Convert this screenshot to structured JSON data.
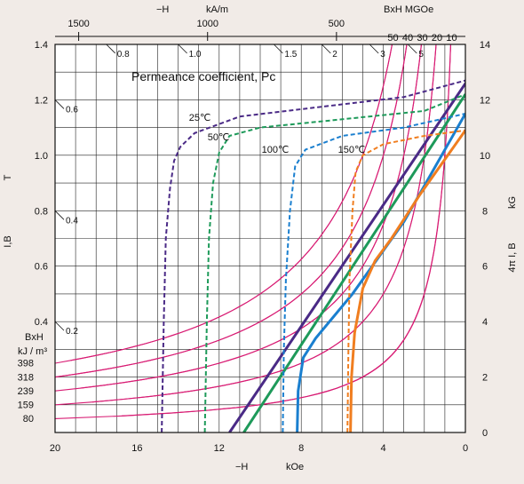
{
  "chart_data": {
    "type": "line",
    "title": "",
    "annotation": "Permeance coefficient, Pc",
    "xlabel_bottom": "−H",
    "xunit_bottom": "kOe",
    "xlabel_top": "−H",
    "xunit_top": "kA/m",
    "top_right_label": "BxH  MGOe",
    "ylabel_left": "I,B",
    "yunit_left": "T",
    "ylabel_right": "4π I, B",
    "yunit_right": "kG",
    "bxh_kj_label_line1": "BxH",
    "bxh_kj_label_line2": "kJ / m³",
    "x_bottom_ticks": [
      "20",
      "16",
      "12",
      "8",
      "4",
      "0"
    ],
    "x_top_ticks": [
      "1500",
      "1000",
      "500"
    ],
    "y_left_ticks": [
      "1.4",
      "1.2",
      "1.0",
      "0.8",
      "0.6",
      "0.4"
    ],
    "y_right_ticks": [
      "14",
      "12",
      "10",
      "8",
      "6",
      "4",
      "2",
      "0"
    ],
    "bxh_kj_values": [
      "398",
      "318",
      "239",
      "159",
      "80"
    ],
    "bxh_mgoe_values": [
      "50",
      "40",
      "30",
      "20",
      "10"
    ],
    "pc_labels": [
      {
        "label": "0.8",
        "pc": 0.8
      },
      {
        "label": "1.0",
        "pc": 1.0
      },
      {
        "label": "1.5",
        "pc": 1.5
      },
      {
        "label": "2",
        "pc": 2
      },
      {
        "label": "3",
        "pc": 3
      },
      {
        "label": "5",
        "pc": 5
      },
      {
        "label": "0.6",
        "pc": 0.6
      },
      {
        "label": "0.4",
        "pc": 0.4
      },
      {
        "label": "0.2",
        "pc": 0.2
      }
    ],
    "series": [
      {
        "name": "25℃",
        "color": "#4a2a86",
        "normal": [
          [
            11.5,
            0
          ],
          [
            -0.1,
            12.7
          ]
        ],
        "intrinsic": [
          [
            14.8,
            0
          ],
          [
            14.7,
            4
          ],
          [
            14.6,
            7
          ],
          [
            14.4,
            8.8
          ],
          [
            14.2,
            9.8
          ],
          [
            13.9,
            10.3
          ],
          [
            13.2,
            10.8
          ],
          [
            11,
            11.4
          ],
          [
            7,
            11.75
          ],
          [
            3,
            12.1
          ],
          [
            0,
            12.7
          ]
        ]
      },
      {
        "name": "50℃",
        "color": "#1e9a5a",
        "normal": [
          [
            10.8,
            0
          ],
          [
            0,
            12.2
          ]
        ],
        "intrinsic": [
          [
            12.7,
            0
          ],
          [
            12.6,
            4
          ],
          [
            12.5,
            7
          ],
          [
            12.3,
            9
          ],
          [
            12.0,
            10.1
          ],
          [
            11.5,
            10.7
          ],
          [
            10,
            11.0
          ],
          [
            6,
            11.3
          ],
          [
            2,
            11.6
          ],
          [
            0,
            12.2
          ]
        ]
      },
      {
        "name": "100℃",
        "color": "#1a7fcf",
        "normal": [
          [
            8.2,
            0
          ],
          [
            8.15,
            1.5
          ],
          [
            7.9,
            2.7
          ],
          [
            7.3,
            3.4
          ],
          [
            5.5,
            5.0
          ],
          [
            3.0,
            7.6
          ],
          [
            0,
            11.5
          ]
        ],
        "intrinsic": [
          [
            8.9,
            0
          ],
          [
            8.85,
            3
          ],
          [
            8.75,
            5.5
          ],
          [
            8.55,
            8
          ],
          [
            8.3,
            9.6
          ],
          [
            7.8,
            10.2
          ],
          [
            6,
            10.7
          ],
          [
            3,
            11.0
          ],
          [
            0,
            11.5
          ]
        ]
      },
      {
        "name": "150℃",
        "color": "#f07e20",
        "normal": [
          [
            5.6,
            0
          ],
          [
            5.55,
            2
          ],
          [
            5.4,
            3.6
          ],
          [
            5.0,
            5.2
          ],
          [
            4.4,
            6.2
          ],
          [
            3.6,
            7
          ],
          [
            2.2,
            8.6
          ],
          [
            0,
            10.9
          ]
        ],
        "intrinsic": [
          [
            5.75,
            0
          ],
          [
            5.7,
            3
          ],
          [
            5.65,
            5.5
          ],
          [
            5.5,
            8
          ],
          [
            5.35,
            9.4
          ],
          [
            5.0,
            10.0
          ],
          [
            4,
            10.4
          ],
          [
            2,
            10.7
          ],
          [
            0,
            10.9
          ]
        ]
      }
    ],
    "xlim": [
      20,
      0
    ],
    "ylim_kG": [
      0,
      14
    ]
  }
}
